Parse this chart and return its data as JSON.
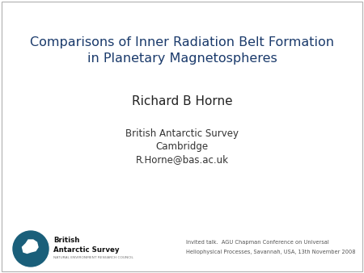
{
  "title_line1": "Comparisons of Inner Radiation Belt Formation",
  "title_line2": "in Planetary Magnetospheres",
  "title_color": "#1a3a6b",
  "author": "Richard B Horne",
  "author_color": "#222222",
  "affil_line1": "British Antarctic Survey",
  "affil_line2": "Cambridge",
  "affil_line3": "R.Horne@bas.ac.uk",
  "affil_color": "#333333",
  "footer_line1": "Invited talk.  AGU Chapman Conference on Universal",
  "footer_line2": "Heliophysical Processes, Savannah, USA, 13th November 2008",
  "footer_color": "#555555",
  "logo_text1": "British",
  "logo_text2": "Antarctic Survey",
  "logo_text3": "NATURAL ENVIRONMENT RESEARCH COUNCIL",
  "logo_circle_color": "#1a5f7a",
  "bg_color": "#ffffff",
  "border_color": "#b0b0b0"
}
